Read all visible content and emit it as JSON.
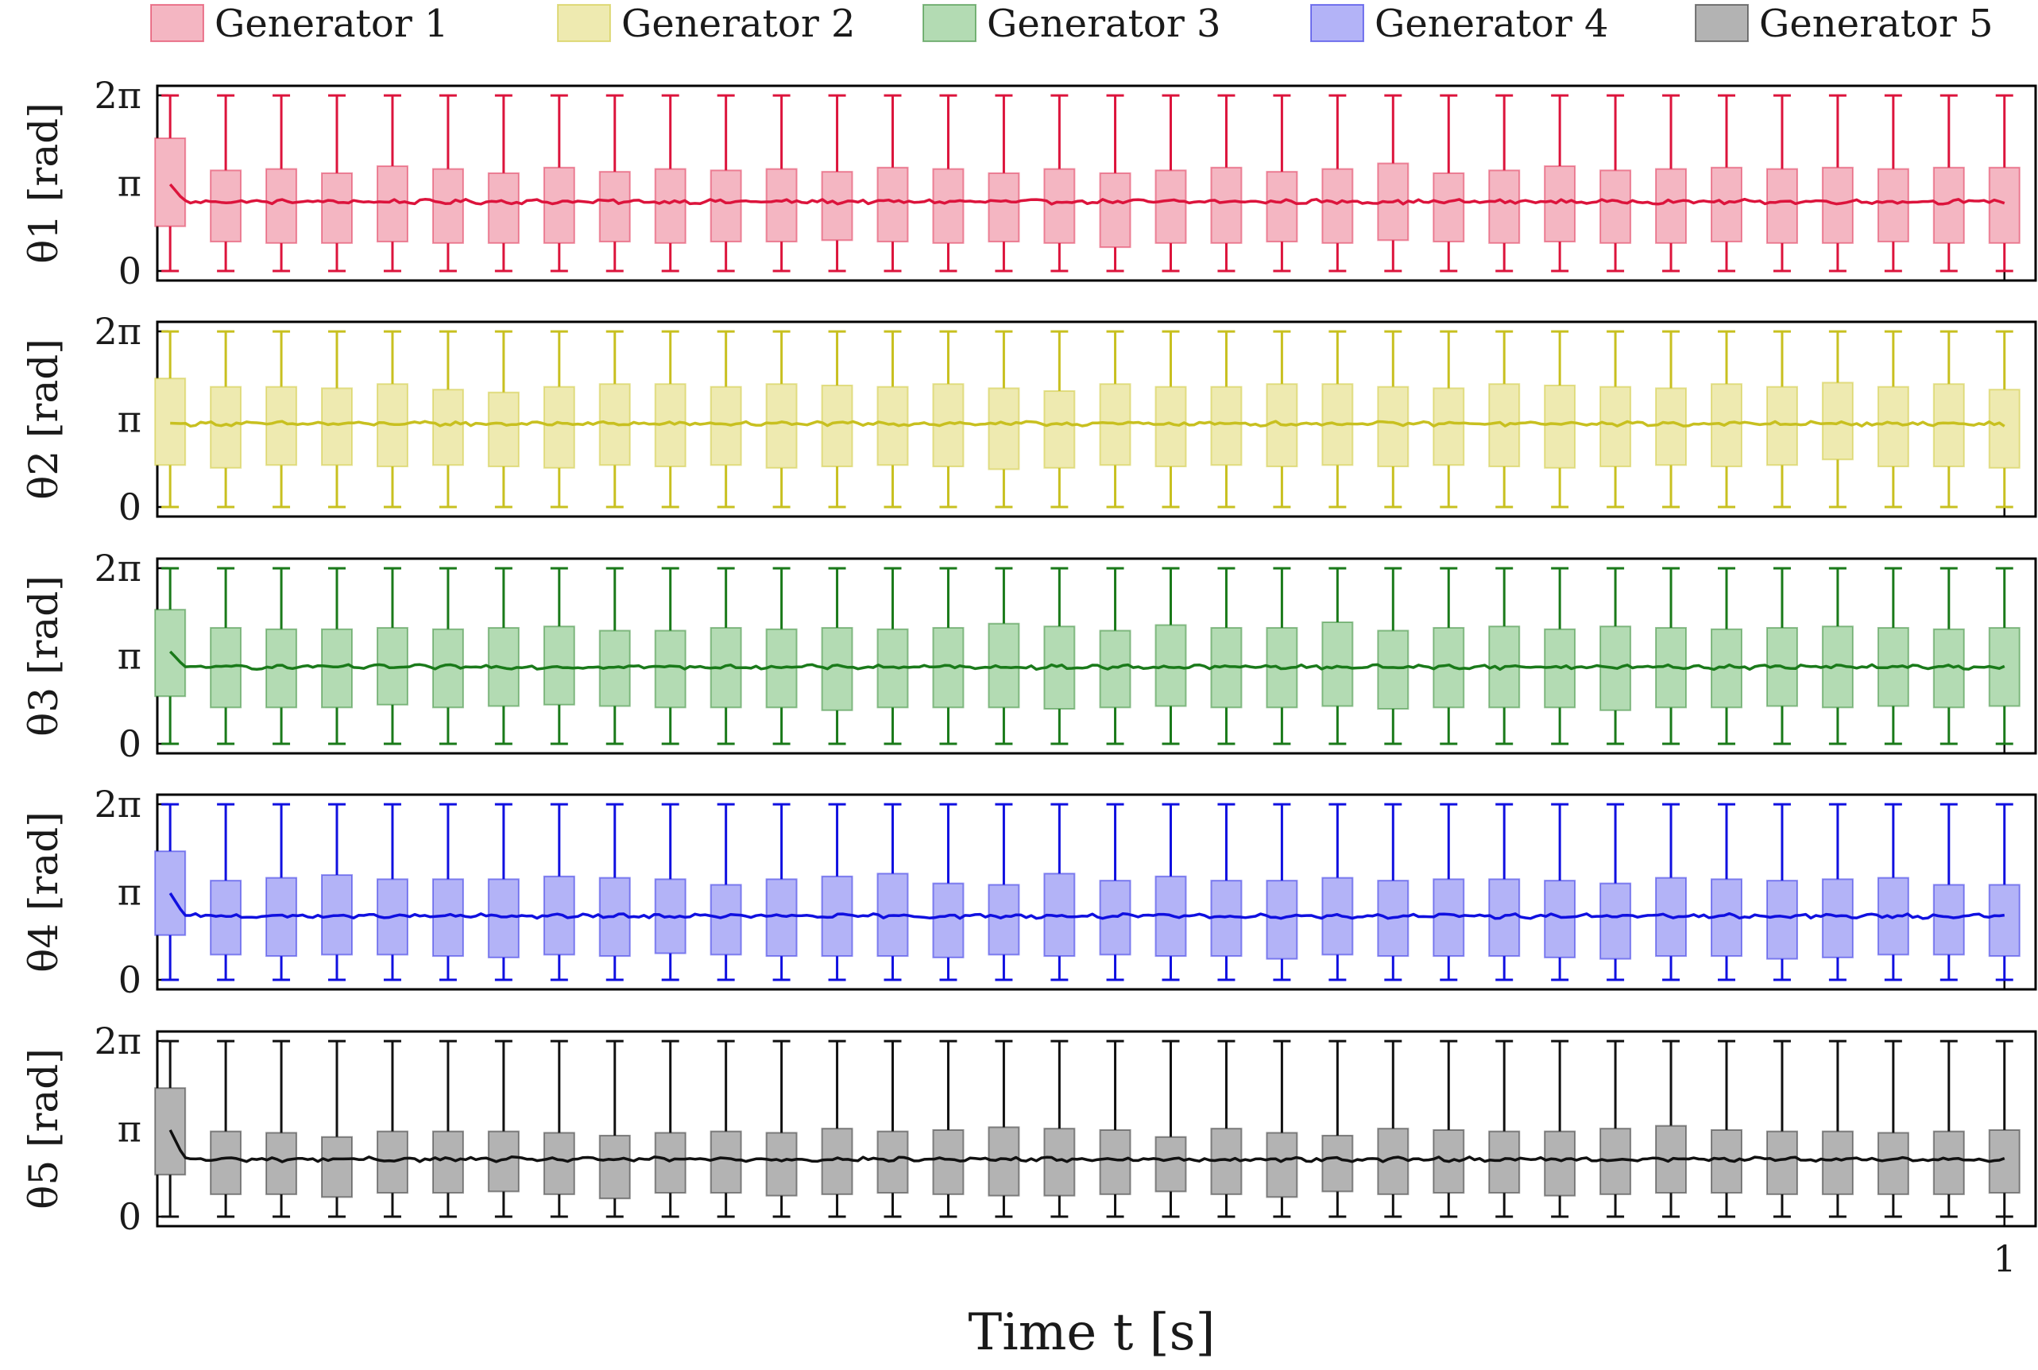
{
  "legend": [
    {
      "label": "Generator 1",
      "color": "#dc143c",
      "fill": "#f4b6c2"
    },
    {
      "label": "Generator 2",
      "color": "#c8c020",
      "fill": "#eeeab0"
    },
    {
      "label": "Generator 3",
      "color": "#1a7a1a",
      "fill": "#b3dbb3"
    },
    {
      "label": "Generator 4",
      "color": "#1010e0",
      "fill": "#b3b3f7"
    },
    {
      "label": "Generator 5",
      "color": "#111111",
      "fill": "#b3b3b3"
    }
  ],
  "xaxis": {
    "label": "Time t [s]",
    "ticks": [
      "1"
    ]
  },
  "yaxis_ticks": [
    "0",
    "π",
    "2π"
  ],
  "chart_data": [
    {
      "type": "box+line",
      "ylabel": "θ1 [rad]",
      "series_color": "#dc143c",
      "ylim": [
        0,
        6.2832
      ],
      "xlim": [
        -0.007,
        1.017
      ],
      "box_positions": [
        0,
        0.0303,
        0.0606,
        0.0909,
        0.1212,
        0.1515,
        0.1818,
        0.2121,
        0.2424,
        0.2727,
        0.303,
        0.3333,
        0.3636,
        0.3939,
        0.4242,
        0.4545,
        0.4848,
        0.5152,
        0.5455,
        0.5758,
        0.6061,
        0.6364,
        0.6667,
        0.697,
        0.7273,
        0.7576,
        0.7879,
        0.8182,
        0.8485,
        0.8788,
        0.9091,
        0.9394,
        0.9697,
        1.0
      ],
      "boxes": [
        [
          0,
          1.6,
          4.75,
          6.28
        ],
        [
          0,
          1.05,
          3.6,
          6.28
        ],
        [
          0,
          1.0,
          3.65,
          6.28
        ],
        [
          0,
          1.0,
          3.5,
          6.28
        ],
        [
          0,
          1.05,
          3.75,
          6.28
        ],
        [
          0,
          1.0,
          3.65,
          6.28
        ],
        [
          0,
          1.0,
          3.5,
          6.28
        ],
        [
          0,
          1.0,
          3.7,
          6.28
        ],
        [
          0,
          1.05,
          3.55,
          6.28
        ],
        [
          0,
          1.0,
          3.65,
          6.28
        ],
        [
          0,
          1.05,
          3.6,
          6.28
        ],
        [
          0,
          1.05,
          3.65,
          6.28
        ],
        [
          0,
          1.1,
          3.55,
          6.28
        ],
        [
          0,
          1.05,
          3.7,
          6.28
        ],
        [
          0,
          1.0,
          3.65,
          6.28
        ],
        [
          0,
          1.05,
          3.5,
          6.28
        ],
        [
          0,
          1.0,
          3.65,
          6.28
        ],
        [
          0,
          0.85,
          3.5,
          6.28
        ],
        [
          0,
          1.0,
          3.6,
          6.28
        ],
        [
          0,
          1.0,
          3.7,
          6.28
        ],
        [
          0,
          1.05,
          3.55,
          6.28
        ],
        [
          0,
          1.0,
          3.65,
          6.28
        ],
        [
          0,
          1.1,
          3.85,
          6.28
        ],
        [
          0,
          1.05,
          3.5,
          6.28
        ],
        [
          0,
          1.0,
          3.6,
          6.28
        ],
        [
          0,
          1.05,
          3.75,
          6.28
        ],
        [
          0,
          1.0,
          3.6,
          6.28
        ],
        [
          0,
          1.0,
          3.65,
          6.28
        ],
        [
          0,
          1.05,
          3.7,
          6.28
        ],
        [
          0,
          1.0,
          3.65,
          6.28
        ],
        [
          0,
          1.0,
          3.7,
          6.28
        ],
        [
          0,
          1.05,
          3.65,
          6.28
        ],
        [
          0,
          1.0,
          3.7,
          6.28
        ],
        [
          0,
          1.0,
          3.7,
          6.28
        ]
      ],
      "trace_level": 2.48,
      "trace_start": 3.1
    },
    {
      "type": "box+line",
      "ylabel": "θ2 [rad]",
      "series_color": "#c8c020",
      "ylim": [
        0,
        6.2832
      ],
      "xlim": [
        -0.007,
        1.017
      ],
      "boxes": [
        [
          0,
          1.5,
          4.6,
          6.28
        ],
        [
          0,
          1.4,
          4.3,
          6.28
        ],
        [
          0,
          1.5,
          4.3,
          6.28
        ],
        [
          0,
          1.5,
          4.25,
          6.28
        ],
        [
          0,
          1.45,
          4.4,
          6.28
        ],
        [
          0,
          1.5,
          4.2,
          6.28
        ],
        [
          0,
          1.45,
          4.1,
          6.28
        ],
        [
          0,
          1.4,
          4.3,
          6.28
        ],
        [
          0,
          1.5,
          4.4,
          6.28
        ],
        [
          0,
          1.45,
          4.4,
          6.28
        ],
        [
          0,
          1.5,
          4.3,
          6.28
        ],
        [
          0,
          1.4,
          4.4,
          6.28
        ],
        [
          0,
          1.45,
          4.35,
          6.28
        ],
        [
          0,
          1.5,
          4.3,
          6.28
        ],
        [
          0,
          1.45,
          4.4,
          6.28
        ],
        [
          0,
          1.35,
          4.25,
          6.28
        ],
        [
          0,
          1.4,
          4.15,
          6.28
        ],
        [
          0,
          1.5,
          4.4,
          6.28
        ],
        [
          0,
          1.45,
          4.3,
          6.28
        ],
        [
          0,
          1.5,
          4.3,
          6.28
        ],
        [
          0,
          1.45,
          4.4,
          6.28
        ],
        [
          0,
          1.5,
          4.4,
          6.28
        ],
        [
          0,
          1.45,
          4.3,
          6.28
        ],
        [
          0,
          1.5,
          4.25,
          6.28
        ],
        [
          0,
          1.45,
          4.4,
          6.28
        ],
        [
          0,
          1.4,
          4.35,
          6.28
        ],
        [
          0,
          1.45,
          4.3,
          6.28
        ],
        [
          0,
          1.5,
          4.25,
          6.28
        ],
        [
          0,
          1.45,
          4.4,
          6.28
        ],
        [
          0,
          1.5,
          4.3,
          6.28
        ],
        [
          0,
          1.7,
          4.45,
          6.28
        ],
        [
          0,
          1.45,
          4.3,
          6.28
        ],
        [
          0,
          1.45,
          4.4,
          6.28
        ],
        [
          0,
          1.4,
          4.2,
          6.28
        ]
      ],
      "trace_level": 2.98,
      "trace_start": 3.0
    },
    {
      "type": "box+line",
      "ylabel": "θ3 [rad]",
      "series_color": "#1a7a1a",
      "ylim": [
        0,
        6.2832
      ],
      "xlim": [
        -0.007,
        1.017
      ],
      "boxes": [
        [
          0,
          1.7,
          4.8,
          6.28
        ],
        [
          0,
          1.3,
          4.15,
          6.28
        ],
        [
          0,
          1.3,
          4.1,
          6.28
        ],
        [
          0,
          1.3,
          4.1,
          6.28
        ],
        [
          0,
          1.4,
          4.15,
          6.28
        ],
        [
          0,
          1.3,
          4.1,
          6.28
        ],
        [
          0,
          1.35,
          4.15,
          6.28
        ],
        [
          0,
          1.4,
          4.2,
          6.28
        ],
        [
          0,
          1.35,
          4.05,
          6.28
        ],
        [
          0,
          1.3,
          4.05,
          6.28
        ],
        [
          0,
          1.3,
          4.15,
          6.28
        ],
        [
          0,
          1.3,
          4.1,
          6.28
        ],
        [
          0,
          1.2,
          4.15,
          6.28
        ],
        [
          0,
          1.3,
          4.1,
          6.28
        ],
        [
          0,
          1.3,
          4.15,
          6.28
        ],
        [
          0,
          1.3,
          4.3,
          6.28
        ],
        [
          0,
          1.25,
          4.2,
          6.28
        ],
        [
          0,
          1.3,
          4.05,
          6.28
        ],
        [
          0,
          1.35,
          4.25,
          6.28
        ],
        [
          0,
          1.3,
          4.15,
          6.28
        ],
        [
          0,
          1.3,
          4.15,
          6.28
        ],
        [
          0,
          1.35,
          4.35,
          6.28
        ],
        [
          0,
          1.25,
          4.05,
          6.28
        ],
        [
          0,
          1.3,
          4.15,
          6.28
        ],
        [
          0,
          1.3,
          4.2,
          6.28
        ],
        [
          0,
          1.3,
          4.1,
          6.28
        ],
        [
          0,
          1.2,
          4.2,
          6.28
        ],
        [
          0,
          1.3,
          4.15,
          6.28
        ],
        [
          0,
          1.3,
          4.1,
          6.28
        ],
        [
          0,
          1.35,
          4.15,
          6.28
        ],
        [
          0,
          1.3,
          4.2,
          6.28
        ],
        [
          0,
          1.35,
          4.15,
          6.28
        ],
        [
          0,
          1.3,
          4.1,
          6.28
        ],
        [
          0,
          1.35,
          4.15,
          6.28
        ]
      ],
      "trace_level": 2.75,
      "trace_start": 3.3
    },
    {
      "type": "box+line",
      "ylabel": "θ4 [rad]",
      "series_color": "#1010e0",
      "ylim": [
        0,
        6.2832
      ],
      "xlim": [
        -0.007,
        1.017
      ],
      "boxes": [
        [
          0,
          1.6,
          4.6,
          6.28
        ],
        [
          0,
          0.9,
          3.55,
          6.28
        ],
        [
          0,
          0.85,
          3.65,
          6.28
        ],
        [
          0,
          0.9,
          3.75,
          6.28
        ],
        [
          0,
          0.9,
          3.6,
          6.28
        ],
        [
          0,
          0.85,
          3.6,
          6.28
        ],
        [
          0,
          0.8,
          3.6,
          6.28
        ],
        [
          0,
          0.9,
          3.7,
          6.28
        ],
        [
          0,
          0.85,
          3.65,
          6.28
        ],
        [
          0,
          0.95,
          3.6,
          6.28
        ],
        [
          0,
          0.9,
          3.4,
          6.28
        ],
        [
          0,
          0.85,
          3.6,
          6.28
        ],
        [
          0,
          0.85,
          3.7,
          6.28
        ],
        [
          0,
          0.85,
          3.8,
          6.28
        ],
        [
          0,
          0.8,
          3.45,
          6.28
        ],
        [
          0,
          0.9,
          3.4,
          6.28
        ],
        [
          0,
          0.85,
          3.8,
          6.28
        ],
        [
          0,
          0.9,
          3.55,
          6.28
        ],
        [
          0,
          0.85,
          3.7,
          6.28
        ],
        [
          0,
          0.85,
          3.55,
          6.28
        ],
        [
          0,
          0.75,
          3.55,
          6.28
        ],
        [
          0,
          0.9,
          3.65,
          6.28
        ],
        [
          0,
          0.85,
          3.55,
          6.28
        ],
        [
          0,
          0.85,
          3.6,
          6.28
        ],
        [
          0,
          0.85,
          3.6,
          6.28
        ],
        [
          0,
          0.8,
          3.55,
          6.28
        ],
        [
          0,
          0.75,
          3.45,
          6.28
        ],
        [
          0,
          0.85,
          3.65,
          6.28
        ],
        [
          0,
          0.85,
          3.6,
          6.28
        ],
        [
          0,
          0.75,
          3.55,
          6.28
        ],
        [
          0,
          0.8,
          3.6,
          6.28
        ],
        [
          0,
          0.9,
          3.65,
          6.28
        ],
        [
          0,
          0.9,
          3.4,
          6.28
        ],
        [
          0,
          0.85,
          3.4,
          6.28
        ]
      ],
      "trace_level": 2.28,
      "trace_start": 3.1
    },
    {
      "type": "box+line",
      "ylabel": "θ5 [rad]",
      "series_color": "#111111",
      "ylim": [
        0,
        6.2832
      ],
      "xlim": [
        -0.007,
        1.017
      ],
      "boxes": [
        [
          0,
          1.5,
          4.6,
          6.28
        ],
        [
          0,
          0.8,
          3.05,
          6.28
        ],
        [
          0,
          0.8,
          3.0,
          6.28
        ],
        [
          0,
          0.7,
          2.85,
          6.28
        ],
        [
          0,
          0.85,
          3.05,
          6.28
        ],
        [
          0,
          0.85,
          3.05,
          6.28
        ],
        [
          0,
          0.9,
          3.05,
          6.28
        ],
        [
          0,
          0.8,
          3.0,
          6.28
        ],
        [
          0,
          0.65,
          2.9,
          6.28
        ],
        [
          0,
          0.85,
          3.0,
          6.28
        ],
        [
          0,
          0.85,
          3.05,
          6.28
        ],
        [
          0,
          0.75,
          3.0,
          6.28
        ],
        [
          0,
          0.8,
          3.15,
          6.28
        ],
        [
          0,
          0.85,
          3.05,
          6.28
        ],
        [
          0,
          0.8,
          3.1,
          6.28
        ],
        [
          0,
          0.75,
          3.2,
          6.28
        ],
        [
          0,
          0.75,
          3.15,
          6.28
        ],
        [
          0,
          0.8,
          3.1,
          6.28
        ],
        [
          0,
          0.9,
          2.85,
          6.28
        ],
        [
          0,
          0.8,
          3.15,
          6.28
        ],
        [
          0,
          0.7,
          3.0,
          6.28
        ],
        [
          0,
          0.9,
          2.9,
          6.28
        ],
        [
          0,
          0.8,
          3.15,
          6.28
        ],
        [
          0,
          0.85,
          3.1,
          6.28
        ],
        [
          0,
          0.85,
          3.05,
          6.28
        ],
        [
          0,
          0.75,
          3.05,
          6.28
        ],
        [
          0,
          0.8,
          3.15,
          6.28
        ],
        [
          0,
          0.85,
          3.25,
          6.28
        ],
        [
          0,
          0.85,
          3.1,
          6.28
        ],
        [
          0,
          0.8,
          3.05,
          6.28
        ],
        [
          0,
          0.8,
          3.05,
          6.28
        ],
        [
          0,
          0.8,
          3.0,
          6.28
        ],
        [
          0,
          0.8,
          3.05,
          6.28
        ],
        [
          0,
          0.85,
          3.1,
          6.28
        ]
      ],
      "trace_level": 2.05,
      "trace_start": 3.1
    }
  ]
}
